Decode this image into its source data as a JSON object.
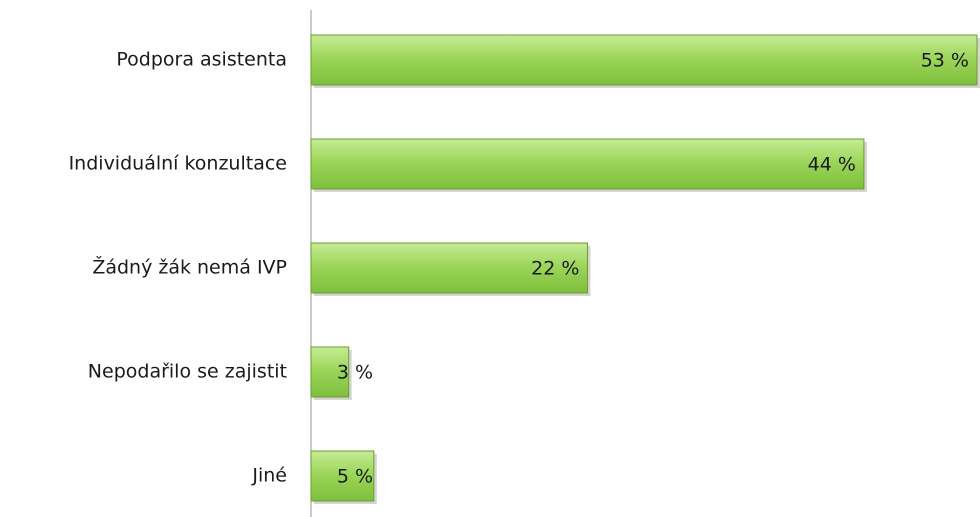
{
  "chart_data": {
    "type": "barh",
    "categories": [
      "Podpora asistenta",
      "Individuální konzultace",
      "Žádný žák nemá IVP",
      "Nepodařilo se zajistit",
      "Jiné"
    ],
    "values": [
      53,
      44,
      22,
      3,
      5
    ],
    "value_labels": [
      "53 %",
      "44 %",
      "22 %",
      "3 %",
      "5 %"
    ],
    "color": "#92d050"
  }
}
